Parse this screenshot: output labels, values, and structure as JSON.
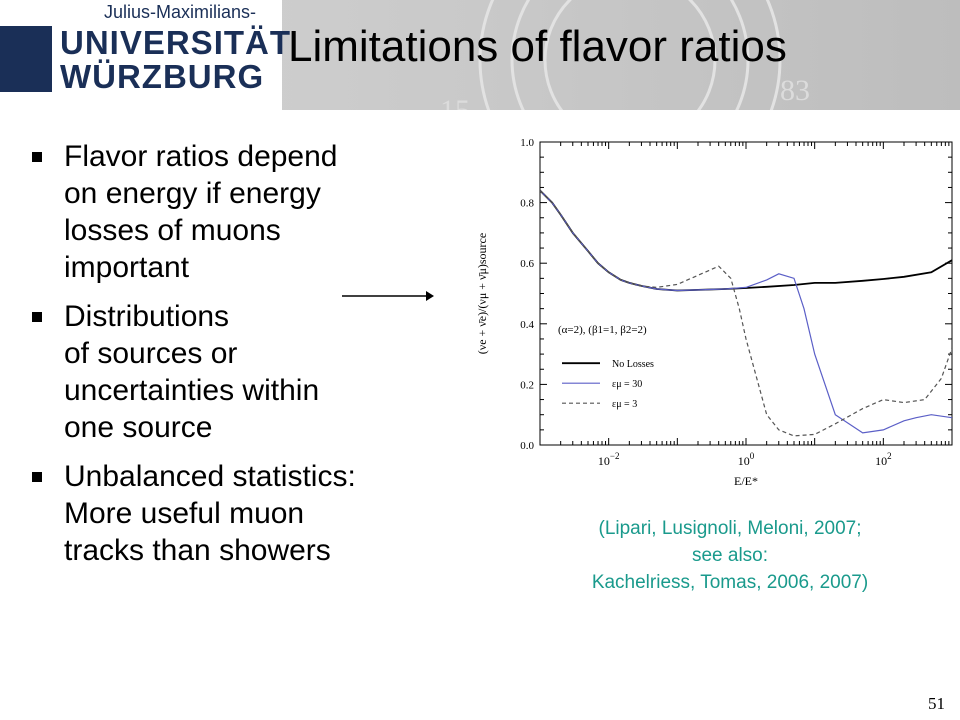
{
  "logo": {
    "subtitle": "Julius-Maximilians-",
    "line1": "UNIVERSITÄT",
    "line2": "WÜRZBURG"
  },
  "title": "Limitations of flavor ratios",
  "bullets": [
    {
      "text": "Flavor ratios depend\non energy if energy\nlosses of muons\nimportant"
    },
    {
      "text": "Distributions\nof sources or\nuncertainties within\none source"
    },
    {
      "text": "Unbalanced statistics:\nMore useful muon\ntracks than showers"
    }
  ],
  "chart_data": {
    "type": "line",
    "xlabel": "E/E*",
    "ylabel": "(νe + ν̄e)/(νμ + ν̄μ)source",
    "xscale": "log",
    "xlim": [
      0.001,
      1000
    ],
    "ylim": [
      0.0,
      1.0
    ],
    "xticks": [
      {
        "value": 0.01,
        "base": "10",
        "exp": "−2"
      },
      {
        "value": 1,
        "base": "10",
        "exp": "0"
      },
      {
        "value": 100,
        "base": "10",
        "exp": "2"
      }
    ],
    "yticks": [
      "0.0",
      "0.2",
      "0.4",
      "0.6",
      "0.8",
      "1.0"
    ],
    "annotation": "(α=2), (β1=1, β2=2)",
    "legend_position": "left-middle",
    "series": [
      {
        "name": "No Losses",
        "color": "#000000",
        "style": "solid",
        "x": [
          0.001,
          0.0015,
          0.002,
          0.003,
          0.005,
          0.007,
          0.01,
          0.015,
          0.02,
          0.03,
          0.05,
          0.1,
          0.2,
          0.5,
          1,
          2,
          5,
          10,
          20,
          50,
          100,
          200,
          500,
          1000
        ],
        "y": [
          0.84,
          0.8,
          0.76,
          0.7,
          0.64,
          0.6,
          0.57,
          0.545,
          0.535,
          0.525,
          0.515,
          0.51,
          0.512,
          0.515,
          0.518,
          0.522,
          0.528,
          0.535,
          0.535,
          0.542,
          0.548,
          0.555,
          0.57,
          0.61
        ]
      },
      {
        "name": "εμ = 30",
        "color": "#5b5fc7",
        "style": "solid",
        "x": [
          0.001,
          0.0015,
          0.002,
          0.003,
          0.005,
          0.007,
          0.01,
          0.015,
          0.02,
          0.03,
          0.05,
          0.1,
          0.2,
          0.5,
          1,
          2,
          3,
          5,
          7,
          10,
          20,
          50,
          100,
          200,
          300,
          500,
          1000
        ],
        "y": [
          0.84,
          0.8,
          0.76,
          0.7,
          0.64,
          0.6,
          0.57,
          0.545,
          0.535,
          0.525,
          0.515,
          0.51,
          0.512,
          0.515,
          0.52,
          0.545,
          0.565,
          0.55,
          0.45,
          0.3,
          0.1,
          0.04,
          0.05,
          0.08,
          0.09,
          0.1,
          0.09
        ]
      },
      {
        "name": "εμ = 3",
        "color": "#555555",
        "style": "dashed",
        "x": [
          0.001,
          0.0015,
          0.002,
          0.003,
          0.005,
          0.007,
          0.01,
          0.015,
          0.02,
          0.03,
          0.05,
          0.1,
          0.2,
          0.4,
          0.6,
          0.8,
          1,
          2,
          3,
          5,
          10,
          20,
          50,
          100,
          200,
          400,
          700,
          1000
        ],
        "y": [
          0.84,
          0.8,
          0.76,
          0.7,
          0.64,
          0.6,
          0.57,
          0.545,
          0.535,
          0.525,
          0.52,
          0.53,
          0.56,
          0.59,
          0.55,
          0.45,
          0.35,
          0.1,
          0.05,
          0.03,
          0.035,
          0.07,
          0.12,
          0.15,
          0.14,
          0.15,
          0.22,
          0.32
        ]
      }
    ]
  },
  "citation": "(Lipari, Lusignoli, Meloni, 2007;\nsee also:\nKachelriess, Tomas, 2006, 2007)",
  "page_number": "51"
}
